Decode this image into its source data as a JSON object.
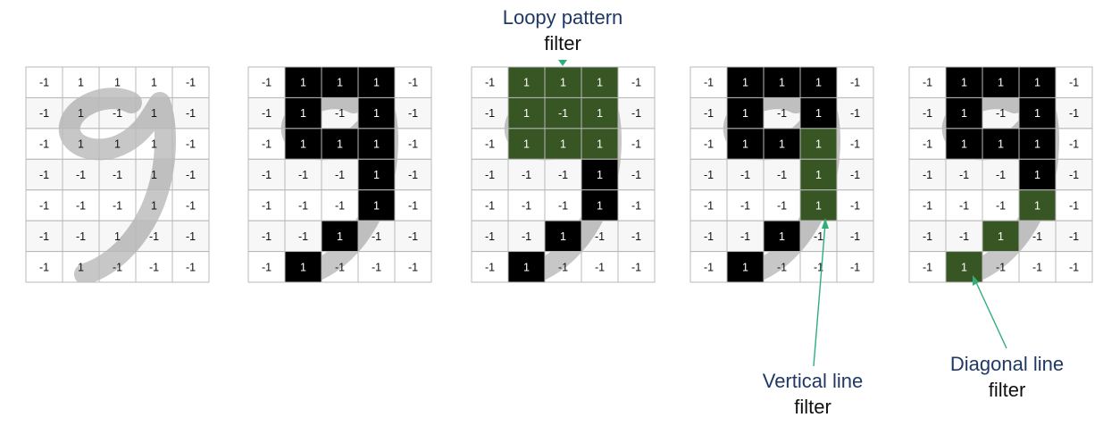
{
  "colors": {
    "black_cell": "#000000",
    "green_cell": "#375623",
    "light_cell": "#ffffff",
    "shaded_cell": "#f0f0f0",
    "grid_line": "#b8b8b8",
    "stroke_gray": "#6e6e6e",
    "arrow": "#2fae7a",
    "label_title": "#1f3864",
    "label_sub": "#111111"
  },
  "grids": [
    {
      "name": "original",
      "cells": [
        [
          "-1",
          "1",
          "1",
          "1",
          "-1"
        ],
        [
          "-1",
          "1",
          "-1",
          "1",
          "-1"
        ],
        [
          "-1",
          "1",
          "1",
          "1",
          "-1"
        ],
        [
          "-1",
          "-1",
          "-1",
          "1",
          "-1"
        ],
        [
          "-1",
          "-1",
          "-1",
          "1",
          "-1"
        ],
        [
          "-1",
          "-1",
          "1",
          "-1",
          "-1"
        ],
        [
          "-1",
          "1",
          "-1",
          "-1",
          "-1"
        ]
      ],
      "highlight": [
        [
          0,
          0,
          0,
          0,
          0
        ],
        [
          0,
          0,
          0,
          0,
          0
        ],
        [
          0,
          0,
          0,
          0,
          0
        ],
        [
          0,
          0,
          0,
          0,
          0
        ],
        [
          0,
          0,
          0,
          0,
          0
        ],
        [
          0,
          0,
          0,
          0,
          0
        ],
        [
          0,
          0,
          0,
          0,
          0
        ]
      ]
    },
    {
      "name": "binarized",
      "cells": [
        [
          "-1",
          "1",
          "1",
          "1",
          "-1"
        ],
        [
          "-1",
          "1",
          "-1",
          "1",
          "-1"
        ],
        [
          "-1",
          "1",
          "1",
          "1",
          "-1"
        ],
        [
          "-1",
          "-1",
          "-1",
          "1",
          "-1"
        ],
        [
          "-1",
          "-1",
          "-1",
          "1",
          "-1"
        ],
        [
          "-1",
          "-1",
          "1",
          "-1",
          "-1"
        ],
        [
          "-1",
          "1",
          "-1",
          "-1",
          "-1"
        ]
      ],
      "highlight": [
        [
          0,
          1,
          1,
          1,
          0
        ],
        [
          0,
          1,
          0,
          1,
          0
        ],
        [
          0,
          1,
          1,
          1,
          0
        ],
        [
          0,
          0,
          0,
          1,
          0
        ],
        [
          0,
          0,
          0,
          1,
          0
        ],
        [
          0,
          0,
          1,
          0,
          0
        ],
        [
          0,
          1,
          0,
          0,
          0
        ]
      ]
    },
    {
      "name": "loopy",
      "cells": [
        [
          "-1",
          "1",
          "1",
          "1",
          "-1"
        ],
        [
          "-1",
          "1",
          "-1",
          "1",
          "-1"
        ],
        [
          "-1",
          "1",
          "1",
          "1",
          "-1"
        ],
        [
          "-1",
          "-1",
          "-1",
          "1",
          "-1"
        ],
        [
          "-1",
          "-1",
          "-1",
          "1",
          "-1"
        ],
        [
          "-1",
          "-1",
          "1",
          "-1",
          "-1"
        ],
        [
          "-1",
          "1",
          "-1",
          "-1",
          "-1"
        ]
      ],
      "highlight": [
        [
          0,
          2,
          2,
          2,
          0
        ],
        [
          0,
          2,
          2,
          2,
          0
        ],
        [
          0,
          2,
          2,
          2,
          0
        ],
        [
          0,
          0,
          0,
          1,
          0
        ],
        [
          0,
          0,
          0,
          1,
          0
        ],
        [
          0,
          0,
          1,
          0,
          0
        ],
        [
          0,
          1,
          0,
          0,
          0
        ]
      ]
    },
    {
      "name": "vertical",
      "cells": [
        [
          "-1",
          "1",
          "1",
          "1",
          "-1"
        ],
        [
          "-1",
          "1",
          "-1",
          "1",
          "-1"
        ],
        [
          "-1",
          "1",
          "1",
          "1",
          "-1"
        ],
        [
          "-1",
          "-1",
          "-1",
          "1",
          "-1"
        ],
        [
          "-1",
          "-1",
          "-1",
          "1",
          "-1"
        ],
        [
          "-1",
          "-1",
          "1",
          "-1",
          "-1"
        ],
        [
          "-1",
          "1",
          "-1",
          "-1",
          "-1"
        ]
      ],
      "highlight": [
        [
          0,
          1,
          1,
          1,
          0
        ],
        [
          0,
          1,
          0,
          1,
          0
        ],
        [
          0,
          1,
          1,
          2,
          0
        ],
        [
          0,
          0,
          0,
          2,
          0
        ],
        [
          0,
          0,
          0,
          2,
          0
        ],
        [
          0,
          0,
          1,
          0,
          0
        ],
        [
          0,
          1,
          0,
          0,
          0
        ]
      ]
    },
    {
      "name": "diagonal",
      "cells": [
        [
          "-1",
          "1",
          "1",
          "1",
          "-1"
        ],
        [
          "-1",
          "1",
          "-1",
          "1",
          "-1"
        ],
        [
          "-1",
          "1",
          "1",
          "1",
          "-1"
        ],
        [
          "-1",
          "-1",
          "-1",
          "1",
          "-1"
        ],
        [
          "-1",
          "-1",
          "-1",
          "1",
          "-1"
        ],
        [
          "-1",
          "-1",
          "1",
          "-1",
          "-1"
        ],
        [
          "-1",
          "1",
          "-1",
          "-1",
          "-1"
        ]
      ],
      "highlight": [
        [
          0,
          1,
          1,
          1,
          0
        ],
        [
          0,
          1,
          0,
          1,
          0
        ],
        [
          0,
          1,
          1,
          1,
          0
        ],
        [
          0,
          0,
          0,
          1,
          0
        ],
        [
          0,
          0,
          0,
          2,
          0
        ],
        [
          0,
          0,
          2,
          0,
          0
        ],
        [
          0,
          2,
          0,
          0,
          0
        ]
      ]
    }
  ],
  "labels": {
    "loopy": {
      "line1": "Loopy pattern",
      "line2": "filter"
    },
    "vertical": {
      "line1": "Vertical line",
      "line2": "filter"
    },
    "diagonal": {
      "line1": "Diagonal line",
      "line2": "filter"
    }
  }
}
